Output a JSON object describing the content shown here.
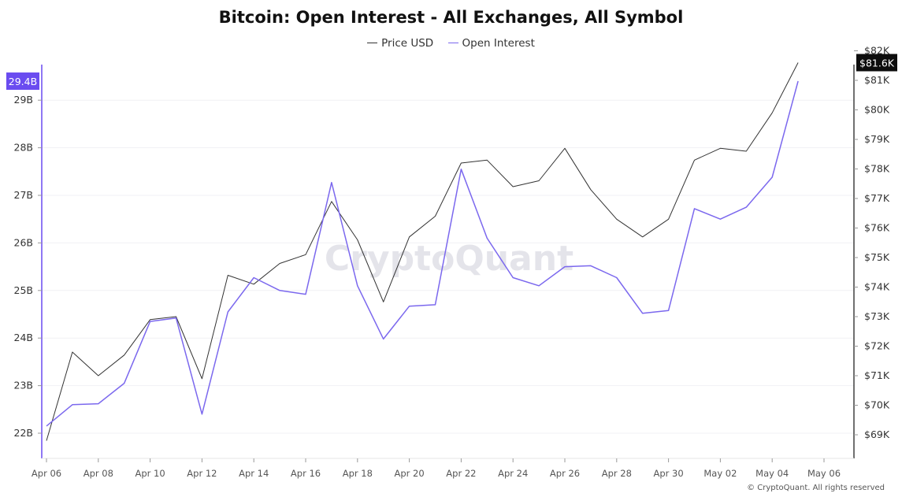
{
  "title": "Bitcoin: Open Interest - All Exchanges, All Symbol",
  "legend": [
    {
      "label": "Price USD",
      "color": "#333333"
    },
    {
      "label": "Open Interest",
      "color": "#7b68ee"
    }
  ],
  "watermark": "CryptoQuant",
  "copyright": "© CryptoQuant. All rights reserved",
  "last_value_labels": {
    "open_interest": "29.4B",
    "price": "$81.6K"
  },
  "colors": {
    "price": "#333333",
    "open_interest": "#7b68ee",
    "left_axis_accent": "#6a4cf0",
    "right_axis": "#111111"
  },
  "chart_data": {
    "type": "line",
    "x": [
      "Apr 06",
      "Apr 07",
      "Apr 08",
      "Apr 09",
      "Apr 10",
      "Apr 11",
      "Apr 12",
      "Apr 13",
      "Apr 14",
      "Apr 15",
      "Apr 16",
      "Apr 17",
      "Apr 18",
      "Apr 19",
      "Apr 20",
      "Apr 21",
      "Apr 22",
      "Apr 23",
      "Apr 24",
      "Apr 25",
      "Apr 26",
      "Apr 27",
      "Apr 28",
      "Apr 29",
      "Apr 30",
      "May 01",
      "May 02",
      "May 03",
      "May 04",
      "May 05"
    ],
    "x_ticks": [
      "Apr 06",
      "Apr 08",
      "Apr 10",
      "Apr 12",
      "Apr 14",
      "Apr 16",
      "Apr 18",
      "Apr 20",
      "Apr 22",
      "Apr 24",
      "Apr 26",
      "Apr 28",
      "Apr 30",
      "May 02",
      "May 04",
      "May 06"
    ],
    "series": [
      {
        "name": "Price USD",
        "axis": "right",
        "values": [
          68800,
          71800,
          71000,
          71700,
          72900,
          73000,
          70900,
          74400,
          74100,
          74800,
          75100,
          76900,
          75600,
          73500,
          75700,
          76400,
          78200,
          78300,
          77400,
          77600,
          78700,
          77300,
          76300,
          75700,
          76300,
          78300,
          78700,
          78600,
          79900,
          81600
        ]
      },
      {
        "name": "Open Interest",
        "axis": "left",
        "values": [
          22.15,
          22.6,
          22.62,
          23.05,
          24.35,
          24.42,
          22.4,
          24.55,
          25.27,
          25.0,
          24.92,
          27.27,
          25.1,
          23.98,
          24.67,
          24.7,
          27.55,
          26.1,
          25.27,
          25.1,
          25.5,
          25.52,
          25.27,
          24.52,
          24.58,
          26.72,
          26.5,
          26.75,
          27.38,
          29.4
        ]
      }
    ],
    "y_left": {
      "ticks": [
        "22B",
        "23B",
        "24B",
        "25B",
        "26B",
        "27B",
        "28B",
        "29B"
      ],
      "min": 22,
      "max": 29,
      "unit": "B"
    },
    "y_right": {
      "ticks": [
        "$69K",
        "$70K",
        "$71K",
        "$72K",
        "$73K",
        "$74K",
        "$75K",
        "$76K",
        "$77K",
        "$78K",
        "$79K",
        "$80K",
        "$81K",
        "$82K"
      ],
      "min": 69000,
      "max": 82000
    },
    "grid": true,
    "legend_position": "top-center"
  }
}
